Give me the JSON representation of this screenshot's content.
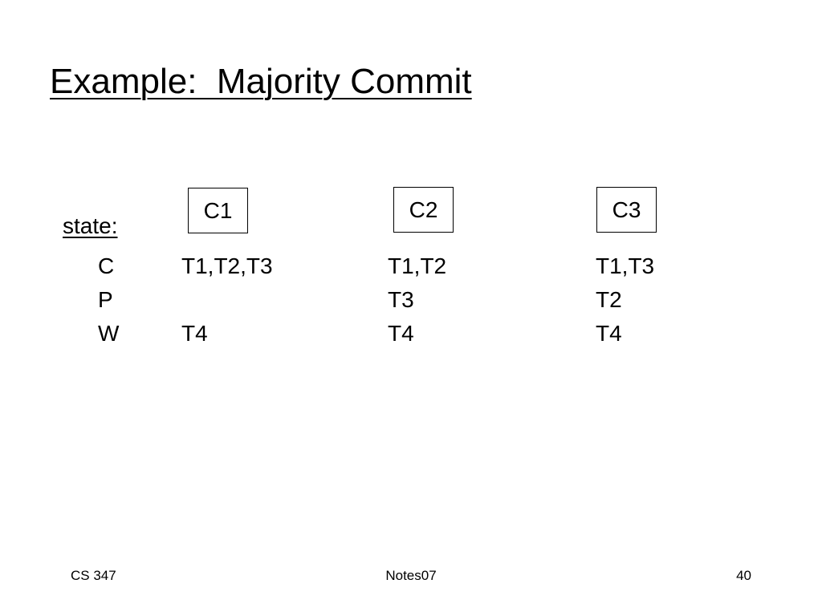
{
  "header": {
    "title": "Example:  Majority Commit"
  },
  "state_label": "state:",
  "table": {
    "columns": [
      "C1",
      "C2",
      "C3"
    ],
    "rows": [
      {
        "label": "C",
        "cells": [
          "T1,T2,T3",
          "T1,T2",
          "T1,T3"
        ]
      },
      {
        "label": "P",
        "cells": [
          null,
          "T3",
          "T2"
        ]
      },
      {
        "label": "W",
        "cells": [
          "T4",
          "T4",
          "T4"
        ]
      }
    ]
  },
  "footer": {
    "left": "CS 347",
    "center": "Notes07",
    "right": "40"
  }
}
